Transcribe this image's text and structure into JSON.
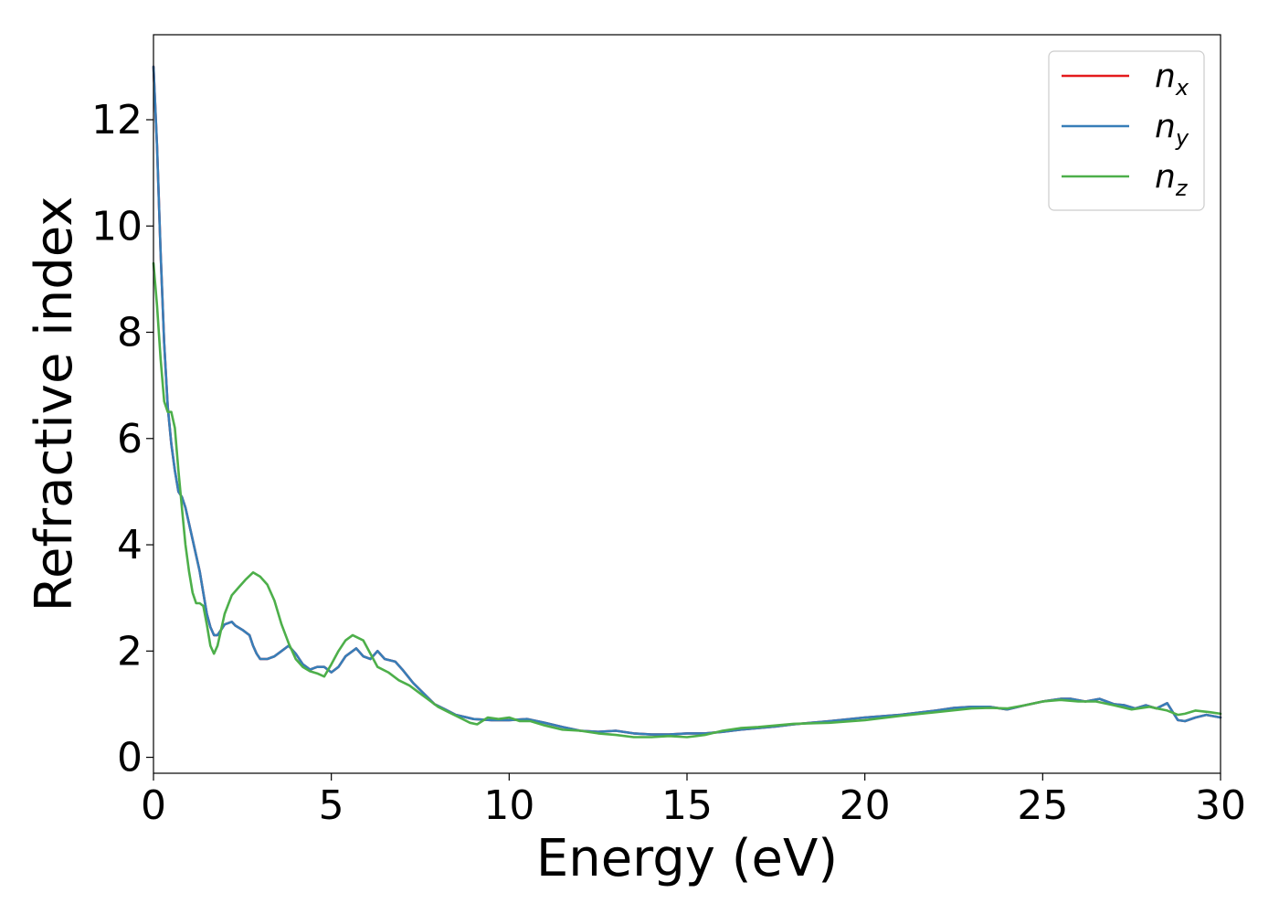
{
  "chart_data": {
    "type": "line",
    "xlabel": "Energy (eV)",
    "ylabel": "Refractive index",
    "xlim": [
      0,
      30
    ],
    "ylim": [
      -0.3,
      13.6
    ],
    "xticks": [
      0,
      5,
      10,
      15,
      20,
      25,
      30
    ],
    "yticks": [
      0,
      2,
      4,
      6,
      8,
      10,
      12
    ],
    "grid": false,
    "legend_position": "top-right",
    "series": [
      {
        "name": "n",
        "subscript": "x",
        "color": "#e41a1c",
        "points": [
          [
            0,
            13.0
          ],
          [
            0.1,
            11.5
          ],
          [
            0.2,
            9.5
          ],
          [
            0.3,
            7.8
          ],
          [
            0.4,
            6.6
          ],
          [
            0.5,
            5.9
          ],
          [
            0.6,
            5.4
          ],
          [
            0.7,
            5.0
          ],
          [
            0.8,
            4.9
          ],
          [
            0.9,
            4.7
          ],
          [
            1.0,
            4.4
          ],
          [
            1.1,
            4.1
          ],
          [
            1.2,
            3.8
          ],
          [
            1.3,
            3.5
          ],
          [
            1.4,
            3.1
          ],
          [
            1.5,
            2.7
          ],
          [
            1.6,
            2.45
          ],
          [
            1.7,
            2.3
          ],
          [
            1.8,
            2.3
          ],
          [
            1.9,
            2.4
          ],
          [
            2.0,
            2.5
          ],
          [
            2.2,
            2.55
          ],
          [
            2.3,
            2.48
          ],
          [
            2.5,
            2.4
          ],
          [
            2.7,
            2.3
          ],
          [
            2.8,
            2.1
          ],
          [
            2.9,
            1.95
          ],
          [
            3.0,
            1.85
          ],
          [
            3.2,
            1.85
          ],
          [
            3.4,
            1.9
          ],
          [
            3.6,
            2.0
          ],
          [
            3.8,
            2.1
          ],
          [
            4.0,
            1.95
          ],
          [
            4.2,
            1.75
          ],
          [
            4.4,
            1.65
          ],
          [
            4.6,
            1.7
          ],
          [
            4.8,
            1.7
          ],
          [
            5.0,
            1.6
          ],
          [
            5.2,
            1.7
          ],
          [
            5.4,
            1.9
          ],
          [
            5.7,
            2.05
          ],
          [
            5.9,
            1.9
          ],
          [
            6.1,
            1.85
          ],
          [
            6.3,
            2.0
          ],
          [
            6.5,
            1.85
          ],
          [
            6.8,
            1.8
          ],
          [
            7.0,
            1.65
          ],
          [
            7.3,
            1.4
          ],
          [
            7.6,
            1.2
          ],
          [
            7.9,
            1.0
          ],
          [
            8.2,
            0.9
          ],
          [
            8.5,
            0.8
          ],
          [
            9.0,
            0.72
          ],
          [
            9.5,
            0.7
          ],
          [
            10.0,
            0.7
          ],
          [
            10.5,
            0.72
          ],
          [
            11.0,
            0.65
          ],
          [
            11.5,
            0.57
          ],
          [
            12.0,
            0.5
          ],
          [
            12.5,
            0.48
          ],
          [
            13.0,
            0.5
          ],
          [
            13.5,
            0.45
          ],
          [
            14.0,
            0.43
          ],
          [
            14.5,
            0.43
          ],
          [
            15.0,
            0.45
          ],
          [
            15.5,
            0.45
          ],
          [
            16.0,
            0.48
          ],
          [
            16.5,
            0.52
          ],
          [
            17.0,
            0.55
          ],
          [
            17.5,
            0.58
          ],
          [
            18.0,
            0.62
          ],
          [
            19.0,
            0.68
          ],
          [
            20.0,
            0.75
          ],
          [
            21.0,
            0.8
          ],
          [
            22.0,
            0.88
          ],
          [
            22.5,
            0.93
          ],
          [
            23.0,
            0.95
          ],
          [
            23.5,
            0.95
          ],
          [
            24.0,
            0.9
          ],
          [
            24.5,
            0.98
          ],
          [
            25.0,
            1.05
          ],
          [
            25.5,
            1.1
          ],
          [
            25.8,
            1.1
          ],
          [
            26.2,
            1.05
          ],
          [
            26.6,
            1.1
          ],
          [
            27.0,
            1.0
          ],
          [
            27.3,
            0.98
          ],
          [
            27.6,
            0.92
          ],
          [
            27.9,
            0.98
          ],
          [
            28.2,
            0.92
          ],
          [
            28.5,
            1.02
          ],
          [
            28.8,
            0.7
          ],
          [
            29.0,
            0.68
          ],
          [
            29.3,
            0.75
          ],
          [
            29.6,
            0.8
          ],
          [
            30.0,
            0.75
          ]
        ]
      },
      {
        "name": "n",
        "subscript": "y",
        "color": "#377eb8",
        "points": [
          [
            0,
            13.0
          ],
          [
            0.1,
            11.5
          ],
          [
            0.2,
            9.5
          ],
          [
            0.3,
            7.8
          ],
          [
            0.4,
            6.6
          ],
          [
            0.5,
            5.9
          ],
          [
            0.6,
            5.4
          ],
          [
            0.7,
            5.0
          ],
          [
            0.8,
            4.9
          ],
          [
            0.9,
            4.7
          ],
          [
            1.0,
            4.4
          ],
          [
            1.1,
            4.1
          ],
          [
            1.2,
            3.8
          ],
          [
            1.3,
            3.5
          ],
          [
            1.4,
            3.1
          ],
          [
            1.5,
            2.7
          ],
          [
            1.6,
            2.45
          ],
          [
            1.7,
            2.3
          ],
          [
            1.8,
            2.3
          ],
          [
            1.9,
            2.4
          ],
          [
            2.0,
            2.5
          ],
          [
            2.2,
            2.55
          ],
          [
            2.3,
            2.48
          ],
          [
            2.5,
            2.4
          ],
          [
            2.7,
            2.3
          ],
          [
            2.8,
            2.1
          ],
          [
            2.9,
            1.95
          ],
          [
            3.0,
            1.85
          ],
          [
            3.2,
            1.85
          ],
          [
            3.4,
            1.9
          ],
          [
            3.6,
            2.0
          ],
          [
            3.8,
            2.1
          ],
          [
            4.0,
            1.95
          ],
          [
            4.2,
            1.75
          ],
          [
            4.4,
            1.65
          ],
          [
            4.6,
            1.7
          ],
          [
            4.8,
            1.7
          ],
          [
            5.0,
            1.6
          ],
          [
            5.2,
            1.7
          ],
          [
            5.4,
            1.9
          ],
          [
            5.7,
            2.05
          ],
          [
            5.9,
            1.9
          ],
          [
            6.1,
            1.85
          ],
          [
            6.3,
            2.0
          ],
          [
            6.5,
            1.85
          ],
          [
            6.8,
            1.8
          ],
          [
            7.0,
            1.65
          ],
          [
            7.3,
            1.4
          ],
          [
            7.6,
            1.2
          ],
          [
            7.9,
            1.0
          ],
          [
            8.2,
            0.9
          ],
          [
            8.5,
            0.8
          ],
          [
            9.0,
            0.72
          ],
          [
            9.5,
            0.7
          ],
          [
            10.0,
            0.7
          ],
          [
            10.5,
            0.72
          ],
          [
            11.0,
            0.65
          ],
          [
            11.5,
            0.57
          ],
          [
            12.0,
            0.5
          ],
          [
            12.5,
            0.48
          ],
          [
            13.0,
            0.5
          ],
          [
            13.5,
            0.45
          ],
          [
            14.0,
            0.43
          ],
          [
            14.5,
            0.43
          ],
          [
            15.0,
            0.45
          ],
          [
            15.5,
            0.45
          ],
          [
            16.0,
            0.48
          ],
          [
            16.5,
            0.52
          ],
          [
            17.0,
            0.55
          ],
          [
            17.5,
            0.58
          ],
          [
            18.0,
            0.62
          ],
          [
            19.0,
            0.68
          ],
          [
            20.0,
            0.75
          ],
          [
            21.0,
            0.8
          ],
          [
            22.0,
            0.88
          ],
          [
            22.5,
            0.93
          ],
          [
            23.0,
            0.95
          ],
          [
            23.5,
            0.95
          ],
          [
            24.0,
            0.9
          ],
          [
            24.5,
            0.98
          ],
          [
            25.0,
            1.05
          ],
          [
            25.5,
            1.1
          ],
          [
            25.8,
            1.1
          ],
          [
            26.2,
            1.05
          ],
          [
            26.6,
            1.1
          ],
          [
            27.0,
            1.0
          ],
          [
            27.3,
            0.98
          ],
          [
            27.6,
            0.92
          ],
          [
            27.9,
            0.98
          ],
          [
            28.2,
            0.92
          ],
          [
            28.5,
            1.02
          ],
          [
            28.8,
            0.7
          ],
          [
            29.0,
            0.68
          ],
          [
            29.3,
            0.75
          ],
          [
            29.6,
            0.8
          ],
          [
            30.0,
            0.75
          ]
        ]
      },
      {
        "name": "n",
        "subscript": "z",
        "color": "#4daf4a",
        "points": [
          [
            0,
            9.3
          ],
          [
            0.1,
            8.5
          ],
          [
            0.2,
            7.5
          ],
          [
            0.3,
            6.7
          ],
          [
            0.4,
            6.5
          ],
          [
            0.5,
            6.5
          ],
          [
            0.6,
            6.2
          ],
          [
            0.7,
            5.4
          ],
          [
            0.8,
            4.7
          ],
          [
            0.9,
            4.0
          ],
          [
            1.0,
            3.5
          ],
          [
            1.1,
            3.1
          ],
          [
            1.2,
            2.9
          ],
          [
            1.3,
            2.9
          ],
          [
            1.4,
            2.85
          ],
          [
            1.5,
            2.5
          ],
          [
            1.6,
            2.1
          ],
          [
            1.7,
            1.95
          ],
          [
            1.8,
            2.1
          ],
          [
            1.9,
            2.4
          ],
          [
            2.0,
            2.7
          ],
          [
            2.2,
            3.05
          ],
          [
            2.4,
            3.2
          ],
          [
            2.6,
            3.35
          ],
          [
            2.8,
            3.48
          ],
          [
            3.0,
            3.4
          ],
          [
            3.2,
            3.25
          ],
          [
            3.4,
            2.95
          ],
          [
            3.6,
            2.5
          ],
          [
            3.8,
            2.15
          ],
          [
            4.0,
            1.85
          ],
          [
            4.2,
            1.7
          ],
          [
            4.4,
            1.62
          ],
          [
            4.6,
            1.58
          ],
          [
            4.8,
            1.52
          ],
          [
            5.0,
            1.75
          ],
          [
            5.2,
            2.0
          ],
          [
            5.4,
            2.2
          ],
          [
            5.6,
            2.3
          ],
          [
            5.9,
            2.2
          ],
          [
            6.1,
            1.95
          ],
          [
            6.3,
            1.7
          ],
          [
            6.6,
            1.6
          ],
          [
            6.9,
            1.45
          ],
          [
            7.2,
            1.35
          ],
          [
            7.5,
            1.2
          ],
          [
            7.8,
            1.05
          ],
          [
            8.0,
            0.95
          ],
          [
            8.3,
            0.85
          ],
          [
            8.6,
            0.75
          ],
          [
            8.9,
            0.65
          ],
          [
            9.1,
            0.62
          ],
          [
            9.4,
            0.75
          ],
          [
            9.7,
            0.72
          ],
          [
            10.0,
            0.75
          ],
          [
            10.3,
            0.68
          ],
          [
            10.6,
            0.68
          ],
          [
            11.0,
            0.6
          ],
          [
            11.5,
            0.52
          ],
          [
            12.0,
            0.5
          ],
          [
            12.5,
            0.45
          ],
          [
            13.0,
            0.42
          ],
          [
            13.5,
            0.38
          ],
          [
            14.0,
            0.38
          ],
          [
            14.5,
            0.4
          ],
          [
            15.0,
            0.38
          ],
          [
            15.5,
            0.42
          ],
          [
            16.0,
            0.5
          ],
          [
            16.5,
            0.55
          ],
          [
            17.0,
            0.57
          ],
          [
            17.5,
            0.6
          ],
          [
            18.0,
            0.63
          ],
          [
            19.0,
            0.65
          ],
          [
            20.0,
            0.7
          ],
          [
            21.0,
            0.78
          ],
          [
            22.0,
            0.85
          ],
          [
            23.0,
            0.92
          ],
          [
            23.5,
            0.93
          ],
          [
            24.0,
            0.92
          ],
          [
            24.5,
            0.98
          ],
          [
            25.0,
            1.05
          ],
          [
            25.5,
            1.08
          ],
          [
            26.0,
            1.05
          ],
          [
            26.5,
            1.05
          ],
          [
            27.0,
            0.98
          ],
          [
            27.5,
            0.9
          ],
          [
            28.0,
            0.95
          ],
          [
            28.5,
            0.88
          ],
          [
            28.8,
            0.8
          ],
          [
            29.0,
            0.82
          ],
          [
            29.3,
            0.88
          ],
          [
            29.7,
            0.85
          ],
          [
            30.0,
            0.82
          ]
        ]
      }
    ]
  }
}
